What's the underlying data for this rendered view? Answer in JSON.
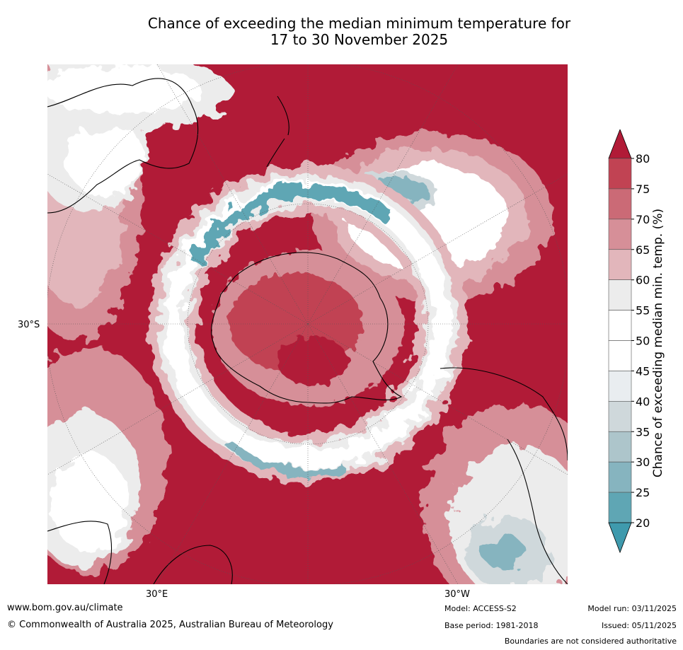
{
  "title": {
    "line1": "Chance of exceeding the median minimum temperature for",
    "line2": "17 to 30 November 2025"
  },
  "map": {
    "projection": "south-polar stereographic",
    "lat_label": "30°S",
    "lon_labels": [
      "30°E",
      "30°W"
    ]
  },
  "colorbar": {
    "title": "Chance of exceeding median min. temp. (%)",
    "ticks": [
      "80",
      "75",
      "70",
      "65",
      "60",
      "55",
      "50",
      "45",
      "40",
      "35",
      "30",
      "25",
      "20"
    ],
    "colors": {
      "over": "#b11b37",
      "c75_80": "#c14353",
      "c70_75": "#cb6a76",
      "c65_70": "#d68f98",
      "c60_65": "#e2b6bb",
      "c55_60": "#ececec",
      "c50_55": "#ffffff",
      "c45_50": "#ffffff",
      "c40_45": "#e9edf0",
      "c35_40": "#cfd8db",
      "c30_35": "#adc5cb",
      "c25_30": "#86b4bf",
      "c20_25": "#5fa6b4",
      "under": "#3f9aad"
    }
  },
  "footer": {
    "website": "www.bom.gov.au/climate",
    "copyright": "© Commonwealth of Australia 2025, Australian Bureau of Meteorology",
    "model": "Model: ACCESS-S2",
    "base_period": "Base period: 1981-2018",
    "model_run": "Model run: 03/11/2025",
    "issued": "Issued: 05/11/2025",
    "disclaimer": "Boundaries are not considered authoritative"
  }
}
